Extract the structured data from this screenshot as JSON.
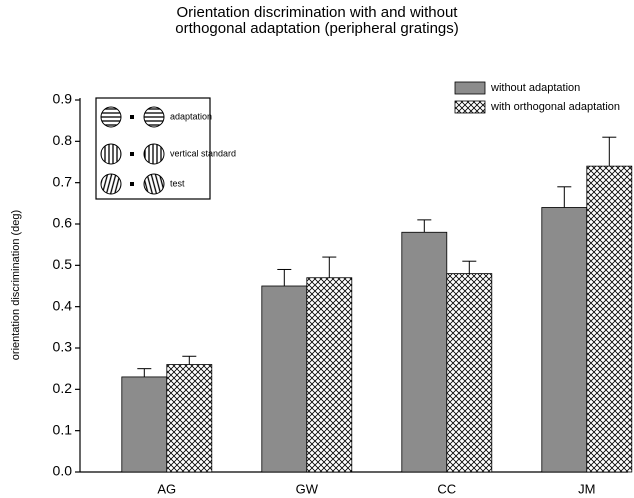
{
  "chart_data": {
    "type": "bar",
    "title": "Orientation discrimination with and without",
    "subtitle": "orthogonal adaptation (peripheral gratings)",
    "y_label": "orientation discrimination (deg)",
    "categories": [
      "AG",
      "GW",
      "CC",
      "JM"
    ],
    "series": [
      {
        "name": "without adaptation",
        "color": "#8c8c8c",
        "values": [
          0.23,
          0.45,
          0.58,
          0.64
        ],
        "errors": [
          0.02,
          0.04,
          0.03,
          0.05
        ]
      },
      {
        "name": "with orthogonal adaptation",
        "color": "crosshatch",
        "values": [
          0.26,
          0.47,
          0.48,
          0.74
        ],
        "errors": [
          0.02,
          0.05,
          0.03,
          0.07
        ]
      }
    ],
    "ylim": [
      0,
      0.9
    ],
    "yticks": [
      {
        "value": 0,
        "label": "0.0"
      },
      0.1,
      0.2,
      0.3,
      0.4,
      0.5,
      0.6,
      0.7,
      0.8,
      0.9
    ],
    "inset": [
      "adaptation",
      "vertical standard",
      "test"
    ],
    "legend": "top-right"
  }
}
